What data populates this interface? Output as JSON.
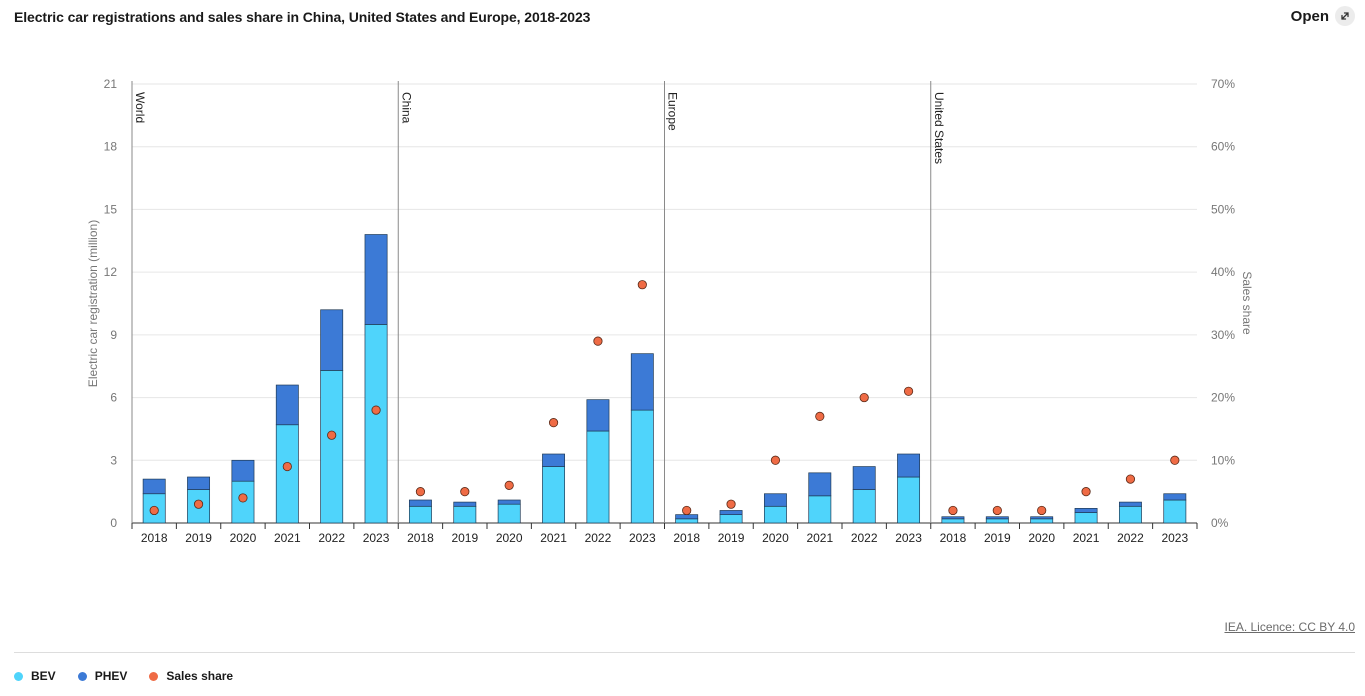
{
  "header": {
    "title": "Electric car registrations and sales share in China, United States and Europe, 2018-2023",
    "open_label": "Open"
  },
  "source": "IEA. Licence: CC BY 4.0",
  "colors": {
    "bev": "#4fd4fb",
    "phev": "#3c7ad6",
    "share": "#ef6b45",
    "grid": "#e6e6e6",
    "separator": "#8a8a8a"
  },
  "legend": [
    {
      "label": "BEV",
      "color": "#4fd4fb"
    },
    {
      "label": "PHEV",
      "color": "#3c7ad6"
    },
    {
      "label": "Sales share",
      "color": "#ef6b45"
    }
  ],
  "chart_data": {
    "type": "bar",
    "stacked": true,
    "title": "Electric car registrations and sales share in China, United States and Europe, 2018-2023",
    "ylabel": "Electric car registration (million)",
    "y2label": "Sales share",
    "ylim": [
      0,
      21
    ],
    "yticks": [
      0,
      3,
      6,
      9,
      12,
      15,
      18,
      21
    ],
    "y2lim": [
      0,
      70
    ],
    "y2ticks": [
      "0%",
      "10%",
      "20%",
      "30%",
      "40%",
      "50%",
      "60%",
      "70%"
    ],
    "groups": [
      {
        "name": "World",
        "categories": [
          "2018",
          "2019",
          "2020",
          "2021",
          "2022",
          "2023"
        ],
        "bev": [
          1.4,
          1.6,
          2.0,
          4.7,
          7.3,
          9.5
        ],
        "phev": [
          0.7,
          0.6,
          1.0,
          1.9,
          2.9,
          4.3
        ],
        "share": [
          2,
          3,
          4,
          9,
          14,
          18
        ]
      },
      {
        "name": "China",
        "categories": [
          "2018",
          "2019",
          "2020",
          "2021",
          "2022",
          "2023"
        ],
        "bev": [
          0.8,
          0.8,
          0.9,
          2.7,
          4.4,
          5.4
        ],
        "phev": [
          0.3,
          0.2,
          0.2,
          0.6,
          1.5,
          2.7
        ],
        "share": [
          5,
          5,
          6,
          16,
          29,
          38
        ]
      },
      {
        "name": "Europe",
        "categories": [
          "2018",
          "2019",
          "2020",
          "2021",
          "2022",
          "2023"
        ],
        "bev": [
          0.2,
          0.4,
          0.8,
          1.3,
          1.6,
          2.2
        ],
        "phev": [
          0.2,
          0.2,
          0.6,
          1.1,
          1.1,
          1.1
        ],
        "share": [
          2,
          3,
          10,
          17,
          20,
          21
        ]
      },
      {
        "name": "United States",
        "categories": [
          "2018",
          "2019",
          "2020",
          "2021",
          "2022",
          "2023"
        ],
        "bev": [
          0.2,
          0.2,
          0.2,
          0.5,
          0.8,
          1.1
        ],
        "phev": [
          0.1,
          0.1,
          0.1,
          0.2,
          0.2,
          0.3
        ],
        "share": [
          2,
          2,
          2,
          5,
          7,
          10
        ]
      }
    ]
  }
}
